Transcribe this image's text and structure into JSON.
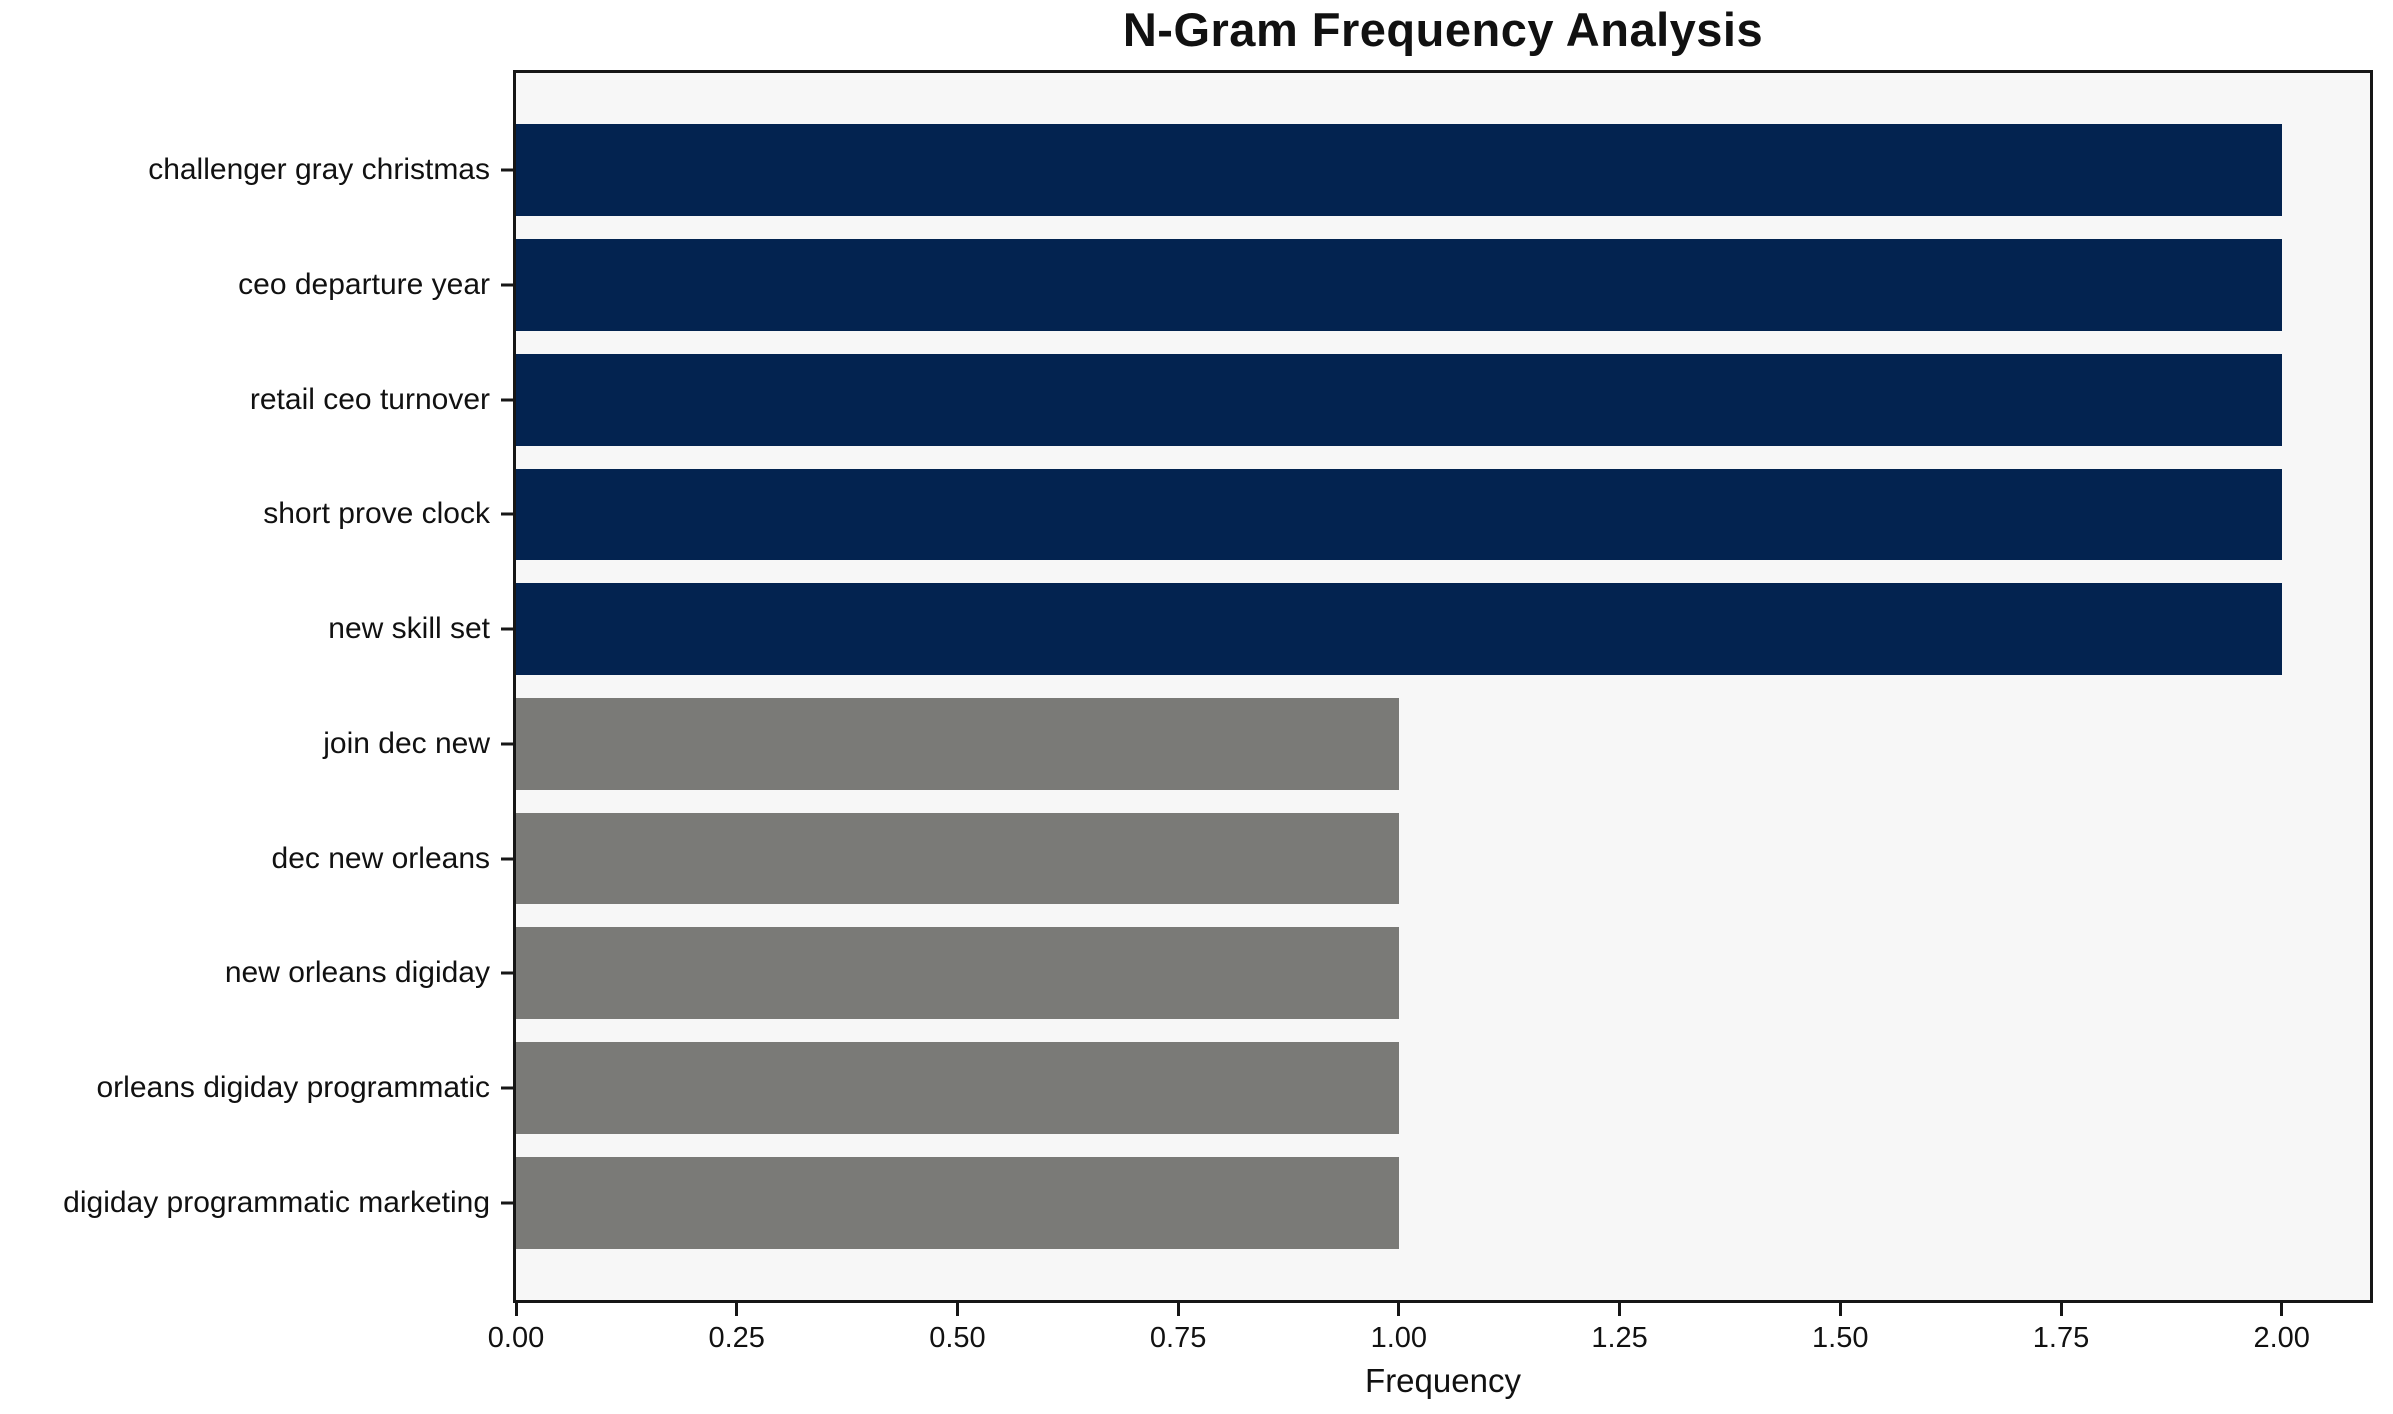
{
  "chart_data": {
    "type": "bar",
    "orientation": "horizontal",
    "title": "N-Gram Frequency Analysis",
    "xlabel": "Frequency",
    "ylabel": "",
    "categories": [
      "challenger gray christmas",
      "ceo departure year",
      "retail ceo turnover",
      "short prove clock",
      "new skill set",
      "join dec new",
      "dec new orleans",
      "new orleans digiday",
      "orleans digiday programmatic",
      "digiday programmatic marketing"
    ],
    "values": [
      2,
      2,
      2,
      2,
      2,
      1,
      1,
      1,
      1,
      1
    ],
    "bar_colors": [
      "#032350",
      "#032350",
      "#032350",
      "#032350",
      "#032350",
      "#7a7a77",
      "#7a7a77",
      "#7a7a77",
      "#7a7a77",
      "#7a7a77"
    ],
    "xlim": [
      0,
      2.1
    ],
    "xticks": [
      0,
      0.25,
      0.5,
      0.75,
      1.0,
      1.25,
      1.5,
      1.75,
      2.0
    ],
    "xtick_labels": [
      "0.00",
      "0.25",
      "0.50",
      "0.75",
      "1.00",
      "1.25",
      "1.50",
      "1.75",
      "2.00"
    ],
    "grid": false,
    "legend": null,
    "bar_height_frac": 0.8,
    "plot_background": "#f7f7f7",
    "figure_background": "#ffffff",
    "axis_color": "#161616"
  }
}
